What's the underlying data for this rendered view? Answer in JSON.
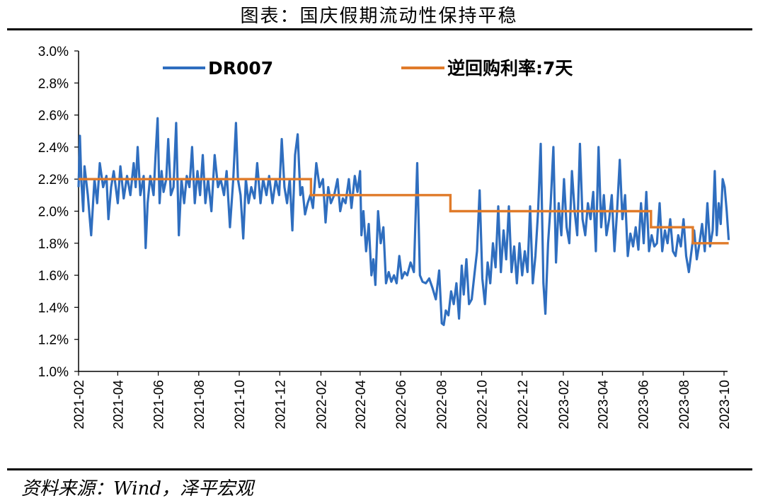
{
  "header": {
    "title": "图表：国庆假期流动性保持平稳"
  },
  "footer": {
    "source": "资料来源：Wind，泽平宏观"
  },
  "colors": {
    "dr007": "#2f6ebf",
    "reverse_repo": "#e07b2a",
    "axis": "#000000"
  },
  "chart_data": {
    "type": "line",
    "title": "图表：国庆假期流动性保持平稳",
    "ylim": [
      1.0,
      3.0
    ],
    "y_ticks": [
      "3.0%",
      "2.8%",
      "2.6%",
      "2.4%",
      "2.2%",
      "2.0%",
      "1.8%",
      "1.6%",
      "1.4%",
      "1.2%",
      "1.0%"
    ],
    "x_range": [
      "2021-02",
      "2023-10"
    ],
    "x_ticks": [
      "2021-02",
      "2021-04",
      "2021-06",
      "2021-08",
      "2021-10",
      "2021-12",
      "2022-02",
      "2022-04",
      "2022-06",
      "2022-08",
      "2022-10",
      "2022-12",
      "2023-02",
      "2023-04",
      "2023-06",
      "2023-08",
      "2023-10"
    ],
    "legend_position": "top",
    "grid": false,
    "series": [
      {
        "name": "DR007",
        "color": "#2f6ebf",
        "points": [
          [
            "2021-02-01",
            2.15
          ],
          [
            "2021-02-03",
            2.47
          ],
          [
            "2021-02-05",
            2.2
          ],
          [
            "2021-02-08",
            2.0
          ],
          [
            "2021-02-10",
            2.28
          ],
          [
            "2021-02-15",
            2.1
          ],
          [
            "2021-02-20",
            1.85
          ],
          [
            "2021-02-25",
            2.2
          ],
          [
            "2021-03-01",
            2.05
          ],
          [
            "2021-03-05",
            2.3
          ],
          [
            "2021-03-10",
            2.15
          ],
          [
            "2021-03-15",
            2.22
          ],
          [
            "2021-03-18",
            1.95
          ],
          [
            "2021-03-22",
            2.15
          ],
          [
            "2021-03-26",
            2.25
          ],
          [
            "2021-04-01",
            2.05
          ],
          [
            "2021-04-05",
            2.28
          ],
          [
            "2021-04-10",
            2.08
          ],
          [
            "2021-04-15",
            2.22
          ],
          [
            "2021-04-20",
            2.1
          ],
          [
            "2021-04-25",
            2.3
          ],
          [
            "2021-04-28",
            2.15
          ],
          [
            "2021-05-01",
            2.4
          ],
          [
            "2021-05-05",
            2.1
          ],
          [
            "2021-05-10",
            2.22
          ],
          [
            "2021-05-13",
            1.77
          ],
          [
            "2021-05-16",
            2.05
          ],
          [
            "2021-05-20",
            2.22
          ],
          [
            "2021-05-25",
            2.1
          ],
          [
            "2021-05-28",
            2.35
          ],
          [
            "2021-05-31",
            2.58
          ],
          [
            "2021-06-03",
            2.05
          ],
          [
            "2021-06-06",
            2.25
          ],
          [
            "2021-06-09",
            2.12
          ],
          [
            "2021-06-13",
            2.2
          ],
          [
            "2021-06-16",
            2.45
          ],
          [
            "2021-06-20",
            2.1
          ],
          [
            "2021-06-24",
            2.15
          ],
          [
            "2021-06-28",
            2.55
          ],
          [
            "2021-07-02",
            1.85
          ],
          [
            "2021-07-06",
            2.2
          ],
          [
            "2021-07-10",
            2.05
          ],
          [
            "2021-07-14",
            2.22
          ],
          [
            "2021-07-18",
            2.15
          ],
          [
            "2021-07-22",
            2.4
          ],
          [
            "2021-07-26",
            2.05
          ],
          [
            "2021-07-30",
            2.25
          ],
          [
            "2021-08-03",
            2.1
          ],
          [
            "2021-08-07",
            2.35
          ],
          [
            "2021-08-11",
            2.05
          ],
          [
            "2021-08-15",
            2.2
          ],
          [
            "2021-08-20",
            2.0
          ],
          [
            "2021-08-25",
            2.35
          ],
          [
            "2021-08-30",
            2.15
          ],
          [
            "2021-09-03",
            2.2
          ],
          [
            "2021-09-08",
            2.1
          ],
          [
            "2021-09-12",
            2.25
          ],
          [
            "2021-09-17",
            1.9
          ],
          [
            "2021-09-22",
            2.2
          ],
          [
            "2021-09-26",
            2.55
          ],
          [
            "2021-09-29",
            2.2
          ],
          [
            "2021-10-03",
            2.1
          ],
          [
            "2021-10-07",
            1.83
          ],
          [
            "2021-10-11",
            2.2
          ],
          [
            "2021-10-15",
            2.05
          ],
          [
            "2021-10-19",
            2.15
          ],
          [
            "2021-10-24",
            2.08
          ],
          [
            "2021-10-28",
            2.3
          ],
          [
            "2021-11-02",
            2.05
          ],
          [
            "2021-11-06",
            2.2
          ],
          [
            "2021-11-11",
            2.1
          ],
          [
            "2021-11-15",
            2.22
          ],
          [
            "2021-11-20",
            2.05
          ],
          [
            "2021-11-25",
            2.2
          ],
          [
            "2021-11-30",
            2.1
          ],
          [
            "2021-12-04",
            2.45
          ],
          [
            "2021-12-08",
            2.15
          ],
          [
            "2021-12-12",
            2.05
          ],
          [
            "2021-12-16",
            2.2
          ],
          [
            "2021-12-20",
            1.88
          ],
          [
            "2021-12-24",
            2.35
          ],
          [
            "2021-12-28",
            2.48
          ],
          [
            "2022-01-01",
            2.1
          ],
          [
            "2022-01-04",
            2.15
          ],
          [
            "2022-01-08",
            1.98
          ],
          [
            "2022-01-12",
            2.05
          ],
          [
            "2022-01-16",
            2.1
          ],
          [
            "2022-01-20",
            2.02
          ],
          [
            "2022-01-25",
            2.3
          ],
          [
            "2022-01-30",
            2.15
          ],
          [
            "2022-02-04",
            2.2
          ],
          [
            "2022-02-08",
            1.93
          ],
          [
            "2022-02-12",
            2.15
          ],
          [
            "2022-02-16",
            2.05
          ],
          [
            "2022-02-21",
            2.1
          ],
          [
            "2022-02-26",
            2.2
          ],
          [
            "2022-03-02",
            2.0
          ],
          [
            "2022-03-06",
            2.08
          ],
          [
            "2022-03-10",
            2.05
          ],
          [
            "2022-03-15",
            2.2
          ],
          [
            "2022-03-19",
            2.02
          ],
          [
            "2022-03-24",
            2.22
          ],
          [
            "2022-03-28",
            2.12
          ],
          [
            "2022-04-01",
            2.25
          ],
          [
            "2022-04-03",
            1.85
          ],
          [
            "2022-04-06",
            2.0
          ],
          [
            "2022-04-10",
            1.75
          ],
          [
            "2022-04-14",
            1.92
          ],
          [
            "2022-04-18",
            1.6
          ],
          [
            "2022-04-21",
            1.7
          ],
          [
            "2022-04-24",
            1.54
          ],
          [
            "2022-04-28",
            2.0
          ],
          [
            "2022-05-02",
            1.8
          ],
          [
            "2022-05-06",
            1.9
          ],
          [
            "2022-05-10",
            1.55
          ],
          [
            "2022-05-14",
            1.62
          ],
          [
            "2022-05-18",
            1.56
          ],
          [
            "2022-05-22",
            1.6
          ],
          [
            "2022-05-26",
            1.55
          ],
          [
            "2022-05-30",
            1.72
          ],
          [
            "2022-06-03",
            1.58
          ],
          [
            "2022-06-07",
            1.62
          ],
          [
            "2022-06-11",
            1.6
          ],
          [
            "2022-06-16",
            1.68
          ],
          [
            "2022-06-21",
            1.62
          ],
          [
            "2022-06-26",
            2.3
          ],
          [
            "2022-06-30",
            1.6
          ],
          [
            "2022-07-04",
            1.56
          ],
          [
            "2022-07-09",
            1.55
          ],
          [
            "2022-07-14",
            1.58
          ],
          [
            "2022-07-19",
            1.52
          ],
          [
            "2022-07-24",
            1.45
          ],
          [
            "2022-07-29",
            1.63
          ],
          [
            "2022-08-02",
            1.3
          ],
          [
            "2022-08-05",
            1.29
          ],
          [
            "2022-08-08",
            1.38
          ],
          [
            "2022-08-12",
            1.35
          ],
          [
            "2022-08-16",
            1.5
          ],
          [
            "2022-08-20",
            1.42
          ],
          [
            "2022-08-24",
            1.55
          ],
          [
            "2022-08-28",
            1.33
          ],
          [
            "2022-09-01",
            1.66
          ],
          [
            "2022-09-04",
            1.48
          ],
          [
            "2022-09-08",
            1.7
          ],
          [
            "2022-09-12",
            1.42
          ],
          [
            "2022-09-16",
            1.45
          ],
          [
            "2022-09-20",
            1.6
          ],
          [
            "2022-09-24",
            1.75
          ],
          [
            "2022-09-28",
            2.13
          ],
          [
            "2022-10-02",
            1.58
          ],
          [
            "2022-10-06",
            1.42
          ],
          [
            "2022-10-10",
            1.68
          ],
          [
            "2022-10-14",
            1.55
          ],
          [
            "2022-10-18",
            1.8
          ],
          [
            "2022-10-22",
            1.65
          ],
          [
            "2022-10-26",
            2.03
          ],
          [
            "2022-10-30",
            1.62
          ],
          [
            "2022-11-03",
            1.88
          ],
          [
            "2022-11-07",
            1.7
          ],
          [
            "2022-11-11",
            2.03
          ],
          [
            "2022-11-15",
            1.62
          ],
          [
            "2022-11-19",
            1.78
          ],
          [
            "2022-11-23",
            1.55
          ],
          [
            "2022-11-27",
            1.8
          ],
          [
            "2022-12-01",
            1.6
          ],
          [
            "2022-12-05",
            1.75
          ],
          [
            "2022-12-09",
            1.62
          ],
          [
            "2022-12-13",
            2.03
          ],
          [
            "2022-12-17",
            1.55
          ],
          [
            "2022-12-21",
            1.72
          ],
          [
            "2022-12-25",
            2.0
          ],
          [
            "2022-12-29",
            2.42
          ],
          [
            "2023-01-02",
            1.55
          ],
          [
            "2023-01-05",
            1.36
          ],
          [
            "2023-01-09",
            1.8
          ],
          [
            "2023-01-13",
            2.05
          ],
          [
            "2023-01-17",
            2.4
          ],
          [
            "2023-01-21",
            1.68
          ],
          [
            "2023-01-25",
            2.05
          ],
          [
            "2023-01-29",
            1.85
          ],
          [
            "2023-02-02",
            2.2
          ],
          [
            "2023-02-06",
            1.9
          ],
          [
            "2023-02-10",
            1.8
          ],
          [
            "2023-02-14",
            2.25
          ],
          [
            "2023-02-18",
            2.0
          ],
          [
            "2023-02-22",
            1.85
          ],
          [
            "2023-02-26",
            2.42
          ],
          [
            "2023-03-02",
            1.95
          ],
          [
            "2023-03-06",
            1.85
          ],
          [
            "2023-03-10",
            2.05
          ],
          [
            "2023-03-14",
            1.95
          ],
          [
            "2023-03-18",
            2.12
          ],
          [
            "2023-03-22",
            1.75
          ],
          [
            "2023-03-26",
            2.4
          ],
          [
            "2023-03-30",
            1.9
          ],
          [
            "2023-04-03",
            2.1
          ],
          [
            "2023-04-07",
            1.85
          ],
          [
            "2023-04-11",
            1.95
          ],
          [
            "2023-04-15",
            2.1
          ],
          [
            "2023-04-19",
            1.75
          ],
          [
            "2023-04-23",
            2.0
          ],
          [
            "2023-04-27",
            2.32
          ],
          [
            "2023-05-01",
            1.95
          ],
          [
            "2023-05-05",
            2.1
          ],
          [
            "2023-05-09",
            1.72
          ],
          [
            "2023-05-13",
            1.86
          ],
          [
            "2023-05-17",
            1.78
          ],
          [
            "2023-05-21",
            1.9
          ],
          [
            "2023-05-25",
            1.76
          ],
          [
            "2023-05-29",
            2.05
          ],
          [
            "2023-06-02",
            1.8
          ],
          [
            "2023-06-06",
            2.12
          ],
          [
            "2023-06-10",
            1.75
          ],
          [
            "2023-06-14",
            1.85
          ],
          [
            "2023-06-18",
            1.78
          ],
          [
            "2023-06-22",
            1.8
          ],
          [
            "2023-06-26",
            2.05
          ],
          [
            "2023-06-30",
            1.75
          ],
          [
            "2023-07-04",
            1.88
          ],
          [
            "2023-07-08",
            1.8
          ],
          [
            "2023-07-12",
            1.95
          ],
          [
            "2023-07-16",
            1.75
          ],
          [
            "2023-07-20",
            1.72
          ],
          [
            "2023-07-24",
            1.85
          ],
          [
            "2023-07-28",
            1.78
          ],
          [
            "2023-08-01",
            1.95
          ],
          [
            "2023-08-05",
            1.72
          ],
          [
            "2023-08-09",
            1.62
          ],
          [
            "2023-08-13",
            1.75
          ],
          [
            "2023-08-17",
            1.88
          ],
          [
            "2023-08-21",
            1.7
          ],
          [
            "2023-08-25",
            1.8
          ],
          [
            "2023-08-29",
            1.92
          ],
          [
            "2023-09-02",
            1.75
          ],
          [
            "2023-09-06",
            2.05
          ],
          [
            "2023-09-10",
            1.78
          ],
          [
            "2023-09-14",
            1.88
          ],
          [
            "2023-09-17",
            2.25
          ],
          [
            "2023-09-20",
            1.85
          ],
          [
            "2023-09-23",
            2.05
          ],
          [
            "2023-09-26",
            1.92
          ],
          [
            "2023-09-29",
            2.2
          ],
          [
            "2023-10-02",
            2.15
          ],
          [
            "2023-10-05",
            2.0
          ],
          [
            "2023-10-08",
            1.82
          ]
        ]
      },
      {
        "name": "逆回购利率:7天",
        "color": "#e07b2a",
        "steps": [
          [
            "2021-02-01",
            2.2
          ],
          [
            "2022-01-17",
            2.1
          ],
          [
            "2022-08-15",
            2.0
          ],
          [
            "2023-06-13",
            1.9
          ],
          [
            "2023-08-15",
            1.8
          ],
          [
            "2023-10-08",
            1.8
          ]
        ]
      }
    ]
  }
}
